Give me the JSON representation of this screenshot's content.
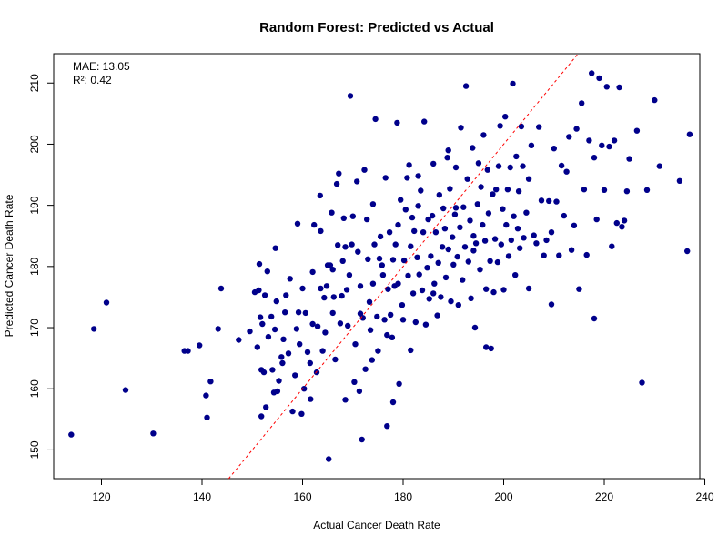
{
  "chart_data": {
    "type": "scatter",
    "title": "Random Forest: Predicted vs Actual",
    "xlabel": "Actual Cancer Death Rate",
    "ylabel": "Predicted Cancer Death Rate",
    "xlim": [
      110.5,
      239
    ],
    "ylim": [
      145.3,
      214.8
    ],
    "xticks": [
      "120",
      "140",
      "160",
      "180",
      "200",
      "220",
      "240"
    ],
    "yticks": [
      "150",
      "160",
      "170",
      "180",
      "190",
      "200",
      "210"
    ],
    "annotations": [
      "MAE: 13.05",
      "R²: 0.42"
    ],
    "reference_line": {
      "type": "identity",
      "color": "#ff0000",
      "style": "dashed"
    },
    "point_color": "#00008b",
    "series": [
      {
        "points": [
          [
            114,
            152.5
          ],
          [
            118.5,
            169.8
          ],
          [
            121,
            174.1
          ],
          [
            124.8,
            159.8
          ],
          [
            130.3,
            152.7
          ],
          [
            136.5,
            166.2
          ],
          [
            137.2,
            166.2
          ],
          [
            139.5,
            167.1
          ],
          [
            140.8,
            158.9
          ],
          [
            141,
            155.3
          ],
          [
            141.7,
            161.2
          ],
          [
            143.2,
            169.8
          ],
          [
            143.8,
            176.4
          ],
          [
            147.3,
            168
          ],
          [
            149.5,
            169.4
          ],
          [
            150.5,
            175.8
          ],
          [
            151,
            166.8
          ],
          [
            151.3,
            176.1
          ],
          [
            151.4,
            180.4
          ],
          [
            151.6,
            171.7
          ],
          [
            151.8,
            163.1
          ],
          [
            151.8,
            155.5
          ],
          [
            152,
            170.6
          ],
          [
            152.3,
            162.7
          ],
          [
            152.5,
            175.3
          ],
          [
            152.7,
            157
          ],
          [
            153,
            179.2
          ],
          [
            153.2,
            168.5
          ],
          [
            153.8,
            171.8
          ],
          [
            154,
            163.1
          ],
          [
            154.3,
            159.4
          ],
          [
            154.5,
            169.7
          ],
          [
            154.6,
            183
          ],
          [
            154.8,
            174.3
          ],
          [
            155,
            159.6
          ],
          [
            155.3,
            161.3
          ],
          [
            155.8,
            165.2
          ],
          [
            156,
            164.2
          ],
          [
            156.2,
            168.1
          ],
          [
            156.5,
            172.5
          ],
          [
            156.7,
            175.3
          ],
          [
            157.2,
            165.8
          ],
          [
            157.5,
            178
          ],
          [
            158,
            156.3
          ],
          [
            158.5,
            162.2
          ],
          [
            158.8,
            169.8
          ],
          [
            159.2,
            172.5
          ],
          [
            159.4,
            167.3
          ],
          [
            159.8,
            155.9
          ],
          [
            160,
            176.4
          ],
          [
            160.3,
            160
          ],
          [
            160.6,
            172.4
          ],
          [
            161,
            166
          ],
          [
            161.5,
            164.2
          ],
          [
            161.6,
            158.3
          ],
          [
            162,
            170.6
          ],
          [
            162,
            179.1
          ],
          [
            162.3,
            186.8
          ],
          [
            162.8,
            162.7
          ],
          [
            163,
            170.2
          ],
          [
            163.6,
            176.4
          ],
          [
            163.6,
            185.8
          ],
          [
            164,
            166.2
          ],
          [
            164.3,
            174.9
          ],
          [
            164.5,
            169.2
          ],
          [
            164.8,
            176.8
          ],
          [
            165,
            180.2
          ],
          [
            165.2,
            148.5
          ],
          [
            165.5,
            180.2
          ],
          [
            165.8,
            188.8
          ],
          [
            166,
            172.4
          ],
          [
            166.2,
            175
          ],
          [
            166.5,
            164.8
          ],
          [
            166.8,
            193.5
          ],
          [
            167,
            183.5
          ],
          [
            167.2,
            195.2
          ],
          [
            167.5,
            170.7
          ],
          [
            167.8,
            175.2
          ],
          [
            168,
            180.9
          ],
          [
            168.2,
            187.9
          ],
          [
            168.5,
            183.2
          ],
          [
            168.8,
            176.2
          ],
          [
            169,
            170.3
          ],
          [
            169.3,
            178.6
          ],
          [
            169.5,
            207.9
          ],
          [
            169.8,
            183.6
          ],
          [
            170,
            188.2
          ],
          [
            170.3,
            161.1
          ],
          [
            170.5,
            167.3
          ],
          [
            170.8,
            193.9
          ],
          [
            171,
            182.4
          ],
          [
            171.3,
            159.6
          ],
          [
            171.5,
            176.8
          ],
          [
            171.8,
            151.7
          ],
          [
            172,
            171.6
          ],
          [
            172.3,
            195.8
          ],
          [
            172.5,
            163.2
          ],
          [
            172.8,
            187.7
          ],
          [
            173,
            181.2
          ],
          [
            173.3,
            174.2
          ],
          [
            173.5,
            169.6
          ],
          [
            173.8,
            164.7
          ],
          [
            174,
            177.2
          ],
          [
            174.3,
            183.6
          ],
          [
            174.5,
            204.1
          ],
          [
            174.8,
            171.8
          ],
          [
            175,
            166.2
          ],
          [
            175.3,
            181.3
          ],
          [
            175.5,
            184.9
          ],
          [
            175.8,
            180.2
          ],
          [
            176,
            178.6
          ],
          [
            176.3,
            171.3
          ],
          [
            176.5,
            194.5
          ],
          [
            176.8,
            168.8
          ],
          [
            177,
            176.3
          ],
          [
            177.3,
            185.6
          ],
          [
            177.5,
            172.1
          ],
          [
            177.8,
            168.4
          ],
          [
            178,
            181.1
          ],
          [
            178.3,
            176.8
          ],
          [
            178.5,
            183.6
          ],
          [
            178.8,
            203.5
          ],
          [
            179,
            186.8
          ],
          [
            179.2,
            160.8
          ],
          [
            179.5,
            190.9
          ],
          [
            179.8,
            173.7
          ],
          [
            180,
            171.3
          ],
          [
            180.2,
            181
          ],
          [
            180.5,
            189.3
          ],
          [
            180.8,
            194.5
          ],
          [
            181,
            178.5
          ],
          [
            181.2,
            196.6
          ],
          [
            181.5,
            183.3
          ],
          [
            181.8,
            188
          ],
          [
            182,
            175.6
          ],
          [
            182.2,
            185.8
          ],
          [
            182.5,
            170.9
          ],
          [
            182.8,
            181.5
          ],
          [
            183,
            194.8
          ],
          [
            183.2,
            178.7
          ],
          [
            183.5,
            192.4
          ],
          [
            183.8,
            176.1
          ],
          [
            184,
            185.6
          ],
          [
            184.2,
            203.7
          ],
          [
            184.5,
            170.5
          ],
          [
            184.8,
            179.8
          ],
          [
            185,
            187.7
          ],
          [
            185.2,
            174.7
          ],
          [
            185.5,
            181.7
          ],
          [
            185.8,
            188.3
          ],
          [
            186,
            196.8
          ],
          [
            186.2,
            177.2
          ],
          [
            186.5,
            185.6
          ],
          [
            186.8,
            172
          ],
          [
            187,
            180.6
          ],
          [
            187.2,
            191.7
          ],
          [
            187.5,
            175
          ],
          [
            187.8,
            183.2
          ],
          [
            188,
            189.5
          ],
          [
            188.3,
            186.2
          ],
          [
            188.5,
            178.2
          ],
          [
            188.8,
            197.8
          ],
          [
            189,
            182.8
          ],
          [
            189.3,
            192.7
          ],
          [
            189.5,
            174.3
          ],
          [
            189.8,
            184.8
          ],
          [
            190,
            180.3
          ],
          [
            190.3,
            188.5
          ],
          [
            190.5,
            196.2
          ],
          [
            190.8,
            181.6
          ],
          [
            191,
            173.7
          ],
          [
            191.3,
            186.4
          ],
          [
            191.5,
            202.7
          ],
          [
            191.8,
            177.8
          ],
          [
            192,
            189.7
          ],
          [
            192.3,
            183.2
          ],
          [
            192.5,
            209.5
          ],
          [
            192.8,
            194.3
          ],
          [
            193,
            180.8
          ],
          [
            193.3,
            187.5
          ],
          [
            193.5,
            174.8
          ],
          [
            193.8,
            199.4
          ],
          [
            194,
            185
          ],
          [
            194.3,
            170
          ],
          [
            194.5,
            183.8
          ],
          [
            194.8,
            190.2
          ],
          [
            195,
            196.9
          ],
          [
            195.3,
            179.5
          ],
          [
            195.5,
            193
          ],
          [
            195.8,
            186.8
          ],
          [
            196,
            201.5
          ],
          [
            196.3,
            184.2
          ],
          [
            196.5,
            176.3
          ],
          [
            196.8,
            195.8
          ],
          [
            197,
            188.7
          ],
          [
            197.3,
            180.9
          ],
          [
            197.5,
            166.6
          ],
          [
            197.8,
            191.8
          ],
          [
            198,
            175.8
          ],
          [
            198.3,
            184.5
          ],
          [
            198.5,
            192.6
          ],
          [
            198.8,
            180.7
          ],
          [
            199,
            196.4
          ],
          [
            199.3,
            203
          ],
          [
            199.5,
            183.6
          ],
          [
            199.8,
            189.4
          ],
          [
            200,
            176.2
          ],
          [
            200.3,
            204.5
          ],
          [
            200.5,
            186.8
          ],
          [
            200.8,
            192.6
          ],
          [
            201,
            181.7
          ],
          [
            201.3,
            196.2
          ],
          [
            201.5,
            184.3
          ],
          [
            201.8,
            209.9
          ],
          [
            202,
            188.2
          ],
          [
            202.3,
            178.6
          ],
          [
            202.5,
            198
          ],
          [
            202.8,
            186.2
          ],
          [
            203,
            192.3
          ],
          [
            203.2,
            183
          ],
          [
            203.5,
            202.9
          ],
          [
            203.8,
            196.4
          ],
          [
            204,
            184.7
          ],
          [
            204.5,
            188.8
          ],
          [
            205,
            176.4
          ],
          [
            205.5,
            199.8
          ],
          [
            206,
            185.1
          ],
          [
            206.5,
            183.8
          ],
          [
            207,
            202.8
          ],
          [
            207.5,
            190.8
          ],
          [
            208,
            181.8
          ],
          [
            208.5,
            184.3
          ],
          [
            209,
            190.7
          ],
          [
            209.5,
            185.6
          ],
          [
            210,
            199.3
          ],
          [
            210.5,
            190.6
          ],
          [
            211,
            181.8
          ],
          [
            211.5,
            196.5
          ],
          [
            212,
            188.3
          ],
          [
            212.5,
            195.5
          ],
          [
            213,
            201.2
          ],
          [
            213.5,
            182.7
          ],
          [
            214,
            186.7
          ],
          [
            214.5,
            202.5
          ],
          [
            215,
            176.3
          ],
          [
            215.5,
            206.7
          ],
          [
            216,
            192.6
          ],
          [
            216.5,
            181.9
          ],
          [
            217,
            200.6
          ],
          [
            217.5,
            211.6
          ],
          [
            218,
            197.8
          ],
          [
            218.5,
            187.7
          ],
          [
            219,
            210.8
          ],
          [
            219.5,
            199.8
          ],
          [
            220,
            192.5
          ],
          [
            220.5,
            209.4
          ],
          [
            221,
            199.6
          ],
          [
            221.5,
            183.3
          ],
          [
            222,
            200.6
          ],
          [
            222.5,
            187.1
          ],
          [
            223,
            209.3
          ],
          [
            223.5,
            186.5
          ],
          [
            224,
            187.5
          ],
          [
            224.5,
            192.3
          ],
          [
            225,
            197.6
          ],
          [
            226.5,
            202.2
          ],
          [
            227.5,
            161
          ],
          [
            228.5,
            192.5
          ],
          [
            230,
            207.2
          ],
          [
            231,
            196.4
          ],
          [
            235,
            194
          ],
          [
            236.5,
            182.5
          ],
          [
            237,
            201.6
          ],
          [
            171.5,
            172.3
          ],
          [
            166,
            179.5
          ],
          [
            178,
            157.8
          ],
          [
            183,
            189.9
          ],
          [
            190.5,
            189.6
          ],
          [
            179,
            177.2
          ],
          [
            186,
            175.6
          ],
          [
            194,
            182.6
          ],
          [
            159,
            187
          ],
          [
            174,
            190.2
          ],
          [
            189,
            199
          ],
          [
            181.5,
            166.3
          ],
          [
            209.5,
            173.8
          ],
          [
            218,
            171.5
          ],
          [
            205,
            194.3
          ],
          [
            163.5,
            191.6
          ],
          [
            168.5,
            158.2
          ],
          [
            176.8,
            153.9
          ],
          [
            196.5,
            166.8
          ]
        ]
      }
    ]
  }
}
